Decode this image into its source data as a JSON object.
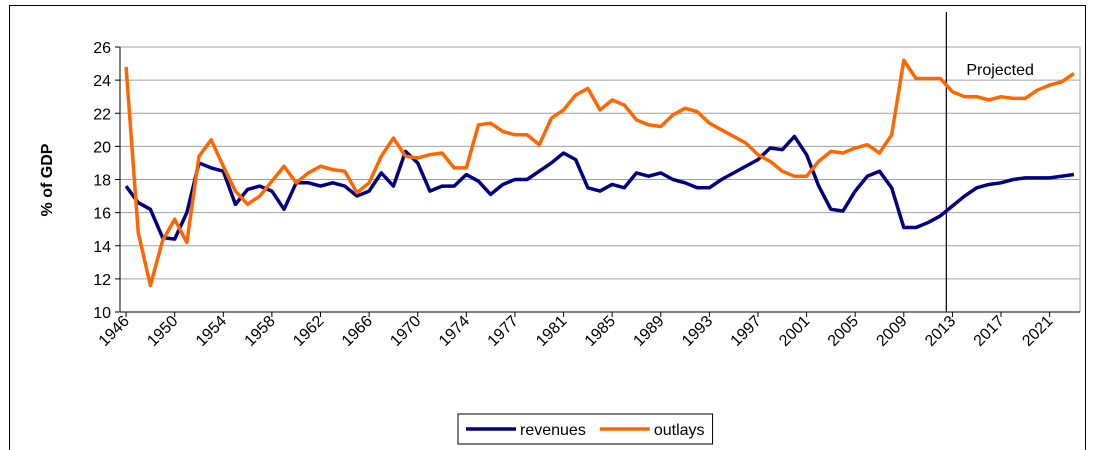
{
  "chart_data": {
    "type": "line",
    "y_label": "% of GDP",
    "annotation": "Projected",
    "categories": [
      "1946",
      null,
      null,
      null,
      "1950",
      null,
      null,
      null,
      "1954",
      null,
      null,
      null,
      "1958",
      null,
      null,
      null,
      "1962",
      null,
      null,
      null,
      "1966",
      null,
      null,
      null,
      "1970",
      null,
      null,
      null,
      "1974",
      null,
      null,
      null,
      "1977",
      null,
      null,
      null,
      "1981",
      null,
      null,
      null,
      "1985",
      null,
      null,
      null,
      "1989",
      null,
      null,
      null,
      "1993",
      null,
      null,
      null,
      "1997",
      null,
      null,
      null,
      "2001",
      null,
      null,
      null,
      "2005",
      null,
      null,
      null,
      "2009",
      null,
      null,
      null,
      "2013",
      null,
      null,
      null,
      "2017",
      null,
      null,
      null,
      "2021",
      null,
      null
    ],
    "series": [
      {
        "name": "revenues",
        "color": "#000080",
        "values": [
          17.6,
          16.6,
          16.2,
          14.5,
          14.4,
          16.0,
          19.0,
          18.7,
          18.5,
          16.5,
          17.4,
          17.6,
          17.3,
          16.2,
          17.8,
          17.8,
          17.6,
          17.8,
          17.6,
          17.0,
          17.3,
          18.4,
          17.6,
          19.7,
          19.0,
          17.3,
          17.6,
          17.6,
          18.3,
          17.9,
          17.1,
          17.7,
          18.0,
          18.0,
          18.5,
          19.0,
          19.6,
          19.2,
          17.5,
          17.3,
          17.7,
          17.5,
          18.4,
          18.2,
          18.4,
          18.0,
          17.8,
          17.5,
          17.5,
          18.0,
          18.4,
          18.8,
          19.2,
          19.9,
          19.8,
          20.6,
          19.5,
          17.6,
          16.2,
          16.1,
          17.3,
          18.2,
          18.5,
          17.5,
          15.1,
          15.1,
          15.4,
          15.8,
          16.4,
          17.0,
          17.5,
          17.7,
          17.8,
          18.0,
          18.1,
          18.1,
          18.1,
          18.2,
          18.3
        ]
      },
      {
        "name": "outlays",
        "color": "#ff6600",
        "values": [
          24.8,
          14.8,
          11.6,
          14.3,
          15.6,
          14.2,
          19.4,
          20.4,
          18.8,
          17.3,
          16.5,
          17.0,
          17.9,
          18.8,
          17.8,
          18.4,
          18.8,
          18.6,
          18.5,
          17.2,
          17.8,
          19.4,
          20.5,
          19.4,
          19.3,
          19.5,
          19.6,
          18.7,
          18.7,
          21.3,
          21.4,
          20.9,
          20.7,
          20.7,
          20.1,
          21.7,
          22.2,
          23.1,
          23.5,
          22.2,
          22.8,
          22.5,
          21.6,
          21.3,
          21.2,
          21.9,
          22.3,
          22.1,
          21.4,
          21.0,
          20.6,
          20.2,
          19.5,
          19.1,
          18.5,
          18.2,
          18.2,
          19.1,
          19.7,
          19.6,
          19.9,
          20.1,
          19.6,
          20.7,
          25.2,
          24.1,
          24.1,
          24.1,
          23.3,
          23.0,
          23.0,
          22.8,
          23.0,
          22.9,
          22.9,
          23.4,
          23.7,
          23.9,
          24.4
        ]
      }
    ],
    "ylim": [
      10,
      26
    ],
    "yticks": [
      10,
      12,
      14,
      16,
      18,
      20,
      22,
      24,
      26
    ],
    "grid": true,
    "legend": "bottom"
  }
}
